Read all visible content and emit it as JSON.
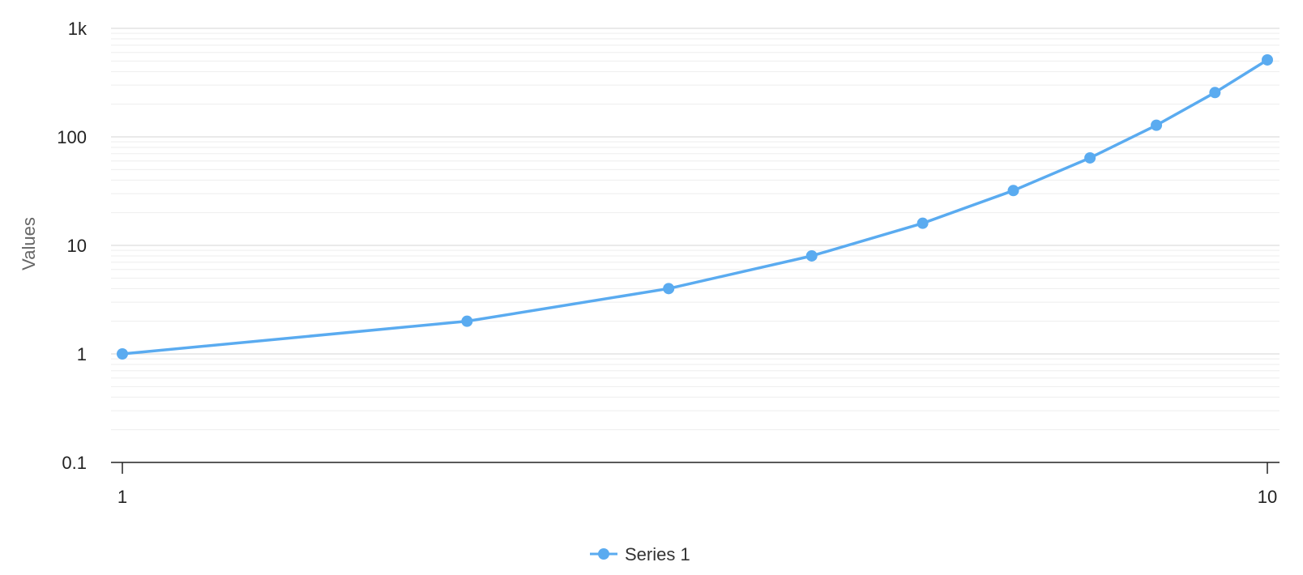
{
  "chart_data": {
    "type": "line",
    "x": [
      1,
      2,
      3,
      4,
      5,
      6,
      7,
      8,
      9,
      10
    ],
    "series": [
      {
        "name": "Series 1",
        "values": [
          1,
          2,
          4,
          8,
          16,
          32,
          64,
          128,
          256,
          512
        ]
      }
    ],
    "xscale": "log",
    "yscale": "log",
    "xlim": [
      1,
      10
    ],
    "ylim": [
      0.1,
      1000
    ],
    "xticks": [
      1,
      10
    ],
    "xtick_labels": [
      "1",
      "10"
    ],
    "yticks": [
      0.1,
      1,
      10,
      100,
      1000
    ],
    "ytick_labels": [
      "0.1",
      "1",
      "10",
      "100",
      "1k"
    ],
    "ylabel": "Values",
    "grid": true,
    "legend_position": "bottom-center",
    "colors": {
      "series": "#5aabf0",
      "grid_major": "#dddddd",
      "grid_minor": "#eeeeee",
      "axis": "#222222"
    }
  }
}
